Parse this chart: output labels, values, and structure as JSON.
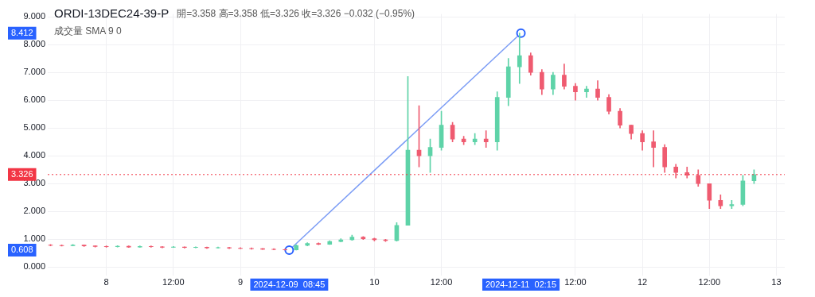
{
  "chart_data": {
    "type": "candlestick",
    "title": "ORDI-13DEC24-39-P",
    "annotations": [
      "開=3.358 高=3.358 低=3.326 收=3.326 −0.032 (−0.95%)",
      "成交量 SMA 9 0",
      "0.608",
      "8.412",
      "2024-12-09  08:45",
      "2024-12-11  02:15"
    ],
    "x": [
      "2024-12-07T14:00",
      "2024-12-07T16:00",
      "2024-12-07T18:00",
      "2024-12-07T20:00",
      "2024-12-07T22:00",
      "2024-12-08T00:00",
      "2024-12-08T02:00",
      "2024-12-08T04:00",
      "2024-12-08T06:00",
      "2024-12-08T08:00",
      "2024-12-08T10:00",
      "2024-12-08T12:00",
      "2024-12-08T14:00",
      "2024-12-08T16:00",
      "2024-12-08T18:00",
      "2024-12-08T20:00",
      "2024-12-08T22:00",
      "2024-12-09T00:00",
      "2024-12-09T02:00",
      "2024-12-09T04:00",
      "2024-12-09T06:00",
      "2024-12-09T08:00",
      "2024-12-09T10:00",
      "2024-12-09T12:00",
      "2024-12-09T14:00",
      "2024-12-09T16:00",
      "2024-12-09T18:00",
      "2024-12-09T20:00",
      "2024-12-09T22:00",
      "2024-12-10T00:00",
      "2024-12-10T02:00",
      "2024-12-10T04:00",
      "2024-12-10T06:00",
      "2024-12-10T08:00",
      "2024-12-10T10:00",
      "2024-12-10T12:00",
      "2024-12-10T14:00",
      "2024-12-10T16:00",
      "2024-12-10T18:00",
      "2024-12-10T20:00",
      "2024-12-10T22:00",
      "2024-12-11T00:00",
      "2024-12-11T02:00",
      "2024-12-11T04:00",
      "2024-12-11T06:00",
      "2024-12-11T08:00",
      "2024-12-11T10:00",
      "2024-12-11T12:00",
      "2024-12-11T14:00",
      "2024-12-11T16:00",
      "2024-12-11T18:00",
      "2024-12-11T20:00",
      "2024-12-11T22:00",
      "2024-12-12T00:00",
      "2024-12-12T02:00",
      "2024-12-12T04:00",
      "2024-12-12T06:00",
      "2024-12-12T08:00",
      "2024-12-12T10:00",
      "2024-12-12T12:00",
      "2024-12-12T14:00",
      "2024-12-12T16:00",
      "2024-12-12T18:00",
      "2024-12-12T20:00"
    ],
    "ohlc": [
      [
        0.79,
        0.81,
        0.76,
        0.78
      ],
      [
        0.78,
        0.8,
        0.75,
        0.77
      ],
      [
        0.77,
        0.81,
        0.76,
        0.79
      ],
      [
        0.79,
        0.8,
        0.74,
        0.76
      ],
      [
        0.76,
        0.77,
        0.72,
        0.74
      ],
      [
        0.74,
        0.76,
        0.71,
        0.73
      ],
      [
        0.73,
        0.77,
        0.72,
        0.75
      ],
      [
        0.75,
        0.76,
        0.7,
        0.72
      ],
      [
        0.72,
        0.76,
        0.71,
        0.74
      ],
      [
        0.74,
        0.76,
        0.71,
        0.73
      ],
      [
        0.73,
        0.74,
        0.69,
        0.71
      ],
      [
        0.71,
        0.74,
        0.7,
        0.72
      ],
      [
        0.72,
        0.73,
        0.68,
        0.7
      ],
      [
        0.7,
        0.73,
        0.69,
        0.71
      ],
      [
        0.71,
        0.72,
        0.67,
        0.69
      ],
      [
        0.69,
        0.72,
        0.68,
        0.7
      ],
      [
        0.7,
        0.71,
        0.66,
        0.68
      ],
      [
        0.68,
        0.7,
        0.66,
        0.67
      ],
      [
        0.67,
        0.69,
        0.64,
        0.66
      ],
      [
        0.66,
        0.67,
        0.63,
        0.64
      ],
      [
        0.64,
        0.66,
        0.62,
        0.63
      ],
      [
        0.63,
        0.65,
        0.608,
        0.62
      ],
      [
        0.62,
        0.8,
        0.61,
        0.78
      ],
      [
        0.78,
        0.88,
        0.76,
        0.85
      ],
      [
        0.85,
        0.87,
        0.8,
        0.82
      ],
      [
        0.82,
        0.95,
        0.81,
        0.92
      ],
      [
        0.92,
        1.02,
        0.9,
        0.98
      ],
      [
        0.98,
        1.15,
        0.96,
        1.08
      ],
      [
        1.08,
        1.1,
        0.99,
        1.02
      ],
      [
        1.02,
        1.04,
        0.94,
        0.98
      ],
      [
        0.98,
        1.0,
        0.92,
        0.95
      ],
      [
        0.95,
        1.6,
        0.93,
        1.5
      ],
      [
        1.5,
        6.85,
        1.5,
        4.2
      ],
      [
        4.2,
        5.8,
        3.6,
        4.0
      ],
      [
        4.0,
        4.6,
        3.4,
        4.3
      ],
      [
        4.3,
        5.6,
        4.2,
        5.1
      ],
      [
        5.1,
        5.2,
        4.5,
        4.6
      ],
      [
        4.6,
        4.7,
        4.4,
        4.5
      ],
      [
        4.5,
        4.8,
        4.4,
        4.6
      ],
      [
        4.6,
        4.9,
        4.3,
        4.5
      ],
      [
        4.5,
        6.3,
        4.2,
        6.1
      ],
      [
        6.1,
        7.5,
        5.8,
        7.2
      ],
      [
        7.2,
        8.412,
        6.6,
        7.6
      ],
      [
        7.6,
        7.7,
        6.9,
        7.0
      ],
      [
        7.0,
        7.1,
        6.2,
        6.4
      ],
      [
        6.4,
        7.0,
        6.2,
        6.9
      ],
      [
        6.9,
        7.3,
        6.4,
        6.5
      ],
      [
        6.5,
        6.6,
        6.0,
        6.3
      ],
      [
        6.3,
        6.5,
        6.1,
        6.4
      ],
      [
        6.4,
        6.7,
        6.0,
        6.1
      ],
      [
        6.1,
        6.2,
        5.5,
        5.6
      ],
      [
        5.6,
        5.7,
        5.0,
        5.1
      ],
      [
        5.1,
        5.1,
        4.6,
        4.8
      ],
      [
        4.8,
        4.9,
        4.2,
        4.5
      ],
      [
        4.5,
        4.9,
        3.6,
        4.3
      ],
      [
        4.3,
        4.4,
        3.4,
        3.6
      ],
      [
        3.6,
        3.7,
        3.2,
        3.4
      ],
      [
        3.4,
        3.6,
        3.2,
        3.3
      ],
      [
        3.3,
        3.5,
        2.9,
        3.0
      ],
      [
        3.0,
        3.0,
        2.1,
        2.4
      ],
      [
        2.4,
        2.6,
        2.1,
        2.2
      ],
      [
        2.2,
        2.4,
        2.1,
        2.25
      ],
      [
        2.25,
        3.3,
        2.2,
        3.1
      ],
      [
        3.1,
        3.5,
        3.0,
        3.326
      ]
    ],
    "colors": [
      "#ef5b70",
      "#ef5b70",
      "#5ed3a8",
      "#ef5b70",
      "#ef5b70",
      "#ef5b70",
      "#5ed3a8",
      "#ef5b70",
      "#5ed3a8",
      "#ef5b70",
      "#ef5b70",
      "#5ed3a8",
      "#ef5b70",
      "#5ed3a8",
      "#ef5b70",
      "#5ed3a8",
      "#ef5b70",
      "#ef5b70",
      "#ef5b70",
      "#ef5b70",
      "#ef5b70",
      "#ef5b70",
      "#5ed3a8",
      "#5ed3a8",
      "#ef5b70",
      "#5ed3a8",
      "#5ed3a8",
      "#5ed3a8",
      "#ef5b70",
      "#ef5b70",
      "#ef5b70",
      "#5ed3a8",
      "#5ed3a8",
      "#ef5b70",
      "#5ed3a8",
      "#5ed3a8",
      "#ef5b70",
      "#ef5b70",
      "#5ed3a8",
      "#ef5b70",
      "#5ed3a8",
      "#5ed3a8",
      "#5ed3a8",
      "#ef5b70",
      "#ef5b70",
      "#5ed3a8",
      "#ef5b70",
      "#ef5b70",
      "#5ed3a8",
      "#ef5b70",
      "#ef5b70",
      "#ef5b70",
      "#ef5b70",
      "#ef5b70",
      "#ef5b70",
      "#ef5b70",
      "#ef5b70",
      "#ef5b70",
      "#ef5b70",
      "#ef5b70",
      "#ef5b70",
      "#5ed3a8",
      "#5ed3a8",
      "#5ed3a8"
    ],
    "series": [
      {
        "type": "line",
        "color": "#7b9cf5",
        "x": [
          "2024-12-09T08:45",
          "2024-12-11T02:15"
        ],
        "values": [
          0.608,
          8.412
        ]
      }
    ],
    "marker": "circle",
    "ref_lines": [
      {
        "axis": "y",
        "value": 3.326,
        "label": "3.326",
        "color": "#f23645",
        "line_style": "dotted"
      }
    ],
    "xlim": [
      "2024-12-07T13:30",
      "2024-12-13T01:30"
    ],
    "xticks": [
      {
        "value": "2024-12-08T00:00",
        "label": "8"
      },
      {
        "value": "2024-12-08T12:00",
        "label": "12:00"
      },
      {
        "value": "2024-12-09T00:00",
        "label": "9"
      },
      {
        "value": "2024-12-10T00:00",
        "label": "10"
      },
      {
        "value": "2024-12-10T12:00",
        "label": "12:00"
      },
      {
        "value": "2024-12-11T12:00",
        "label": "12:00"
      },
      {
        "value": "2024-12-12T00:00",
        "label": "12"
      },
      {
        "value": "2024-12-12T12:00",
        "label": "12:00"
      },
      {
        "value": "2024-12-13T00:00",
        "label": "13"
      }
    ],
    "ylim": [
      -0.3,
      9.1
    ],
    "yticks": [
      {
        "value": 0,
        "label": "0.000"
      },
      {
        "value": 1,
        "label": "1.000"
      },
      {
        "value": 2,
        "label": "2.000"
      },
      {
        "value": 3,
        "label": "3.000"
      },
      {
        "value": 4,
        "label": "4.000"
      },
      {
        "value": 5,
        "label": "5.000"
      },
      {
        "value": 6,
        "label": "6.000"
      },
      {
        "value": 7,
        "label": "7.000"
      },
      {
        "value": 8,
        "label": "8.000"
      },
      {
        "value": 9,
        "label": "9.000"
      }
    ],
    "grid": true,
    "legend": false
  }
}
